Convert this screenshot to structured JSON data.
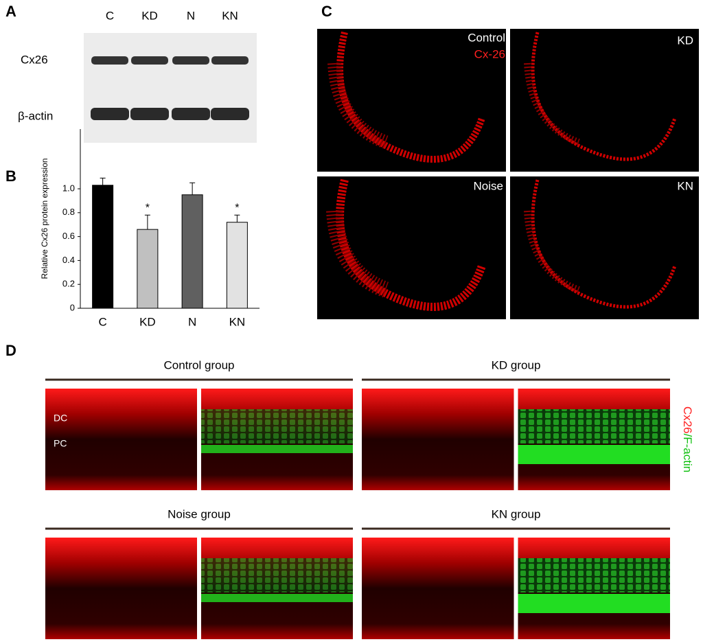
{
  "panels": {
    "a": "A",
    "b": "B",
    "c": "C",
    "d": "D"
  },
  "blot": {
    "lanes": [
      "C",
      "KD",
      "N",
      "KN"
    ],
    "rows": [
      "Cx26",
      "β-actin"
    ]
  },
  "chart_data": {
    "type": "bar",
    "ylabel": "Relative Cx26 protein expression",
    "categories": [
      "C",
      "KD",
      "N",
      "KN"
    ],
    "values": [
      1.03,
      0.66,
      0.95,
      0.72
    ],
    "errors": [
      0.06,
      0.12,
      0.1,
      0.06
    ],
    "markers": [
      null,
      "*",
      null,
      "*"
    ],
    "colors": [
      "#000000",
      "#c0c0c0",
      "#606060",
      "#e2e2e2"
    ],
    "ylim": [
      0,
      1.5
    ],
    "yticks": [
      0,
      0.2,
      0.4,
      0.6,
      0.8,
      {
        "value": 1,
        "label": "1.0"
      }
    ]
  },
  "confocal": {
    "labels": [
      "Control",
      "Cx-26",
      "KD",
      "Noise",
      "KN"
    ]
  },
  "surface": {
    "groups": [
      "Control group",
      "KD group",
      "Noise group",
      "KN group"
    ],
    "cells": [
      "DC",
      "PC"
    ],
    "stain": [
      "Cx26",
      "/F-actin"
    ]
  }
}
